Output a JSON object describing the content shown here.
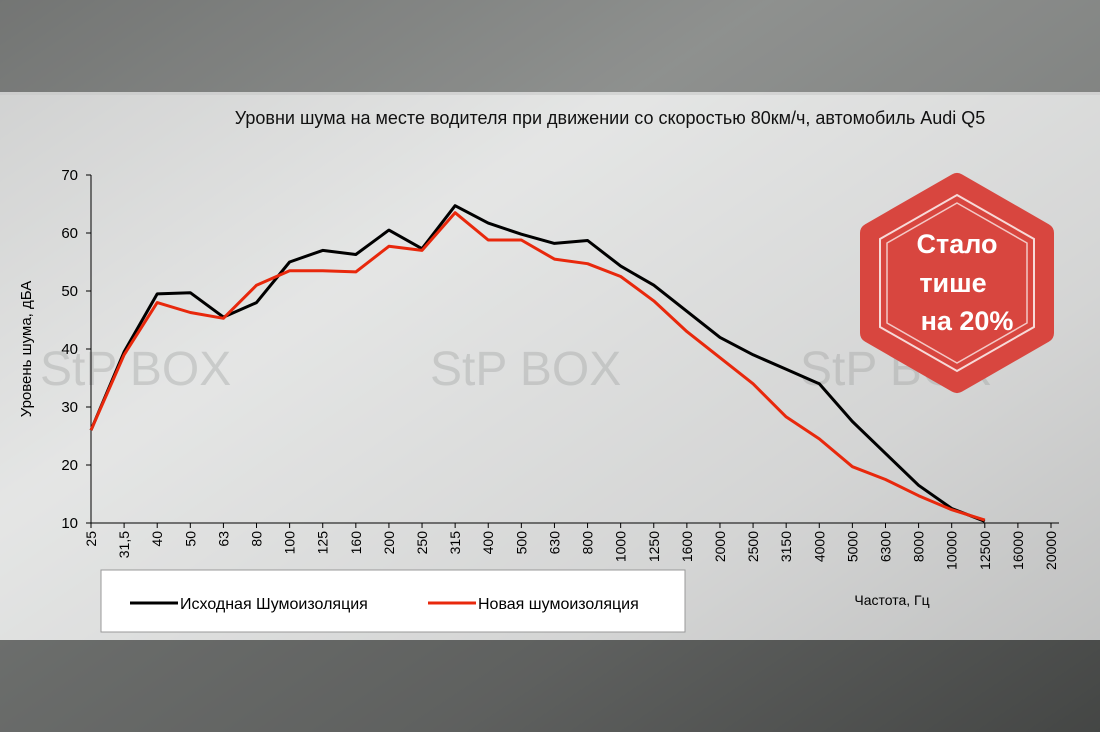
{
  "chart_data": {
    "type": "line",
    "title": "Уровни шума на месте водителя при движении со скоростью 80км/ч, автомобиль Audi Q5",
    "y_label": "Уровень шума, дБА",
    "x_label": "Частота, Гц",
    "categories": [
      "25",
      "31,5",
      "40",
      "50",
      "63",
      "80",
      "100",
      "125",
      "160",
      "200",
      "250",
      "315",
      "400",
      "500",
      "630",
      "800",
      "1000",
      "1250",
      "1600",
      "2000",
      "2500",
      "3150",
      "4000",
      "5000",
      "6300",
      "8000",
      "10000",
      "12500",
      "16000",
      "20000"
    ],
    "series": [
      {
        "name": "Исходная Шумоизоляция",
        "color": "#000000",
        "values": [
          26,
          39.5,
          49.5,
          49.7,
          45.5,
          48,
          55,
          57,
          56.3,
          60.5,
          57.3,
          64.7,
          61.7,
          59.8,
          58.2,
          58.7,
          54.3,
          51,
          46.5,
          42,
          39,
          36.5,
          34,
          27.5,
          22,
          16.5,
          12.5,
          10.3,
          null,
          null
        ]
      },
      {
        "name": "Новая шумоизоляция",
        "color": "#e8280c",
        "values": [
          26,
          39,
          48,
          46.3,
          45.3,
          51,
          53.5,
          53.5,
          53.3,
          57.7,
          57,
          63.5,
          58.8,
          58.8,
          55.5,
          54.7,
          52.5,
          48.3,
          43,
          38.5,
          34,
          28.3,
          24.5,
          19.7,
          17.5,
          14.7,
          12.3,
          10.5,
          null,
          null
        ]
      }
    ],
    "ylim": [
      10,
      70
    ],
    "yticks": [
      10,
      20,
      30,
      40,
      50,
      60,
      70
    ],
    "grid": false,
    "legend": "bottom-left",
    "annotation": [
      "Стало",
      "тише",
      "на 20%"
    ],
    "watermark": "StP BOX"
  }
}
